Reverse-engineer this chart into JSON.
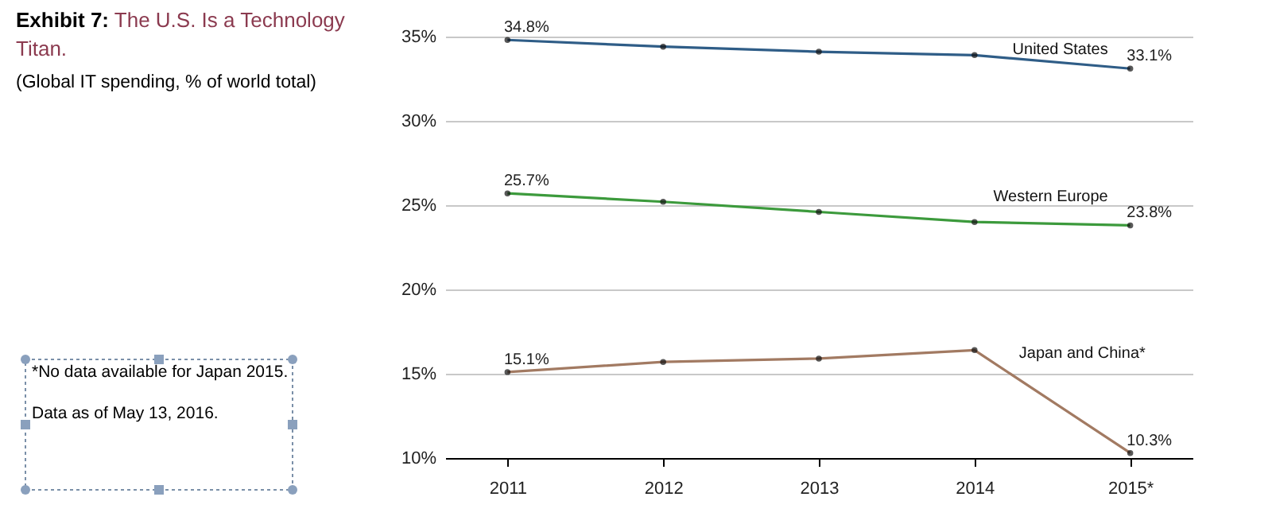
{
  "chart_data": {
    "type": "line",
    "title": "Exhibit 7: The U.S. Is a Technology Titan.",
    "subtitle": "(Global IT spending, % of world total)",
    "annotations": [
      "*No data available for Japan 2015.",
      "Data as of May 13, 2016."
    ],
    "categories": [
      "2011",
      "2012",
      "2013",
      "2014",
      "2015*"
    ],
    "series": [
      {
        "name": "United States",
        "color": "#2f5d87",
        "values": [
          34.8,
          34.4,
          34.1,
          33.9,
          33.1
        ],
        "value_labels": [
          "34.8%",
          null,
          null,
          null,
          "33.1%"
        ]
      },
      {
        "name": "Western Europe",
        "color": "#3c9a3c",
        "values": [
          25.7,
          25.2,
          24.6,
          24.0,
          23.8
        ],
        "value_labels": [
          "25.7%",
          null,
          null,
          null,
          "23.8%"
        ]
      },
      {
        "name": "Japan and China*",
        "color": "#a27a62",
        "values": [
          15.1,
          15.7,
          15.9,
          16.4,
          10.3
        ],
        "value_labels": [
          "15.1%",
          null,
          null,
          null,
          "10.3%"
        ]
      }
    ],
    "ylim": [
      10,
      35
    ],
    "yticks": [
      {
        "value": 10,
        "label": "10%"
      },
      {
        "value": 15,
        "label": "15%"
      },
      {
        "value": 20,
        "label": "20%"
      },
      {
        "value": 25,
        "label": "25%"
      },
      {
        "value": 30,
        "label": "30%"
      },
      {
        "value": 35,
        "label": "35%"
      }
    ],
    "grid": "y",
    "marker": "circle",
    "line_style": "solid",
    "legend": false
  }
}
